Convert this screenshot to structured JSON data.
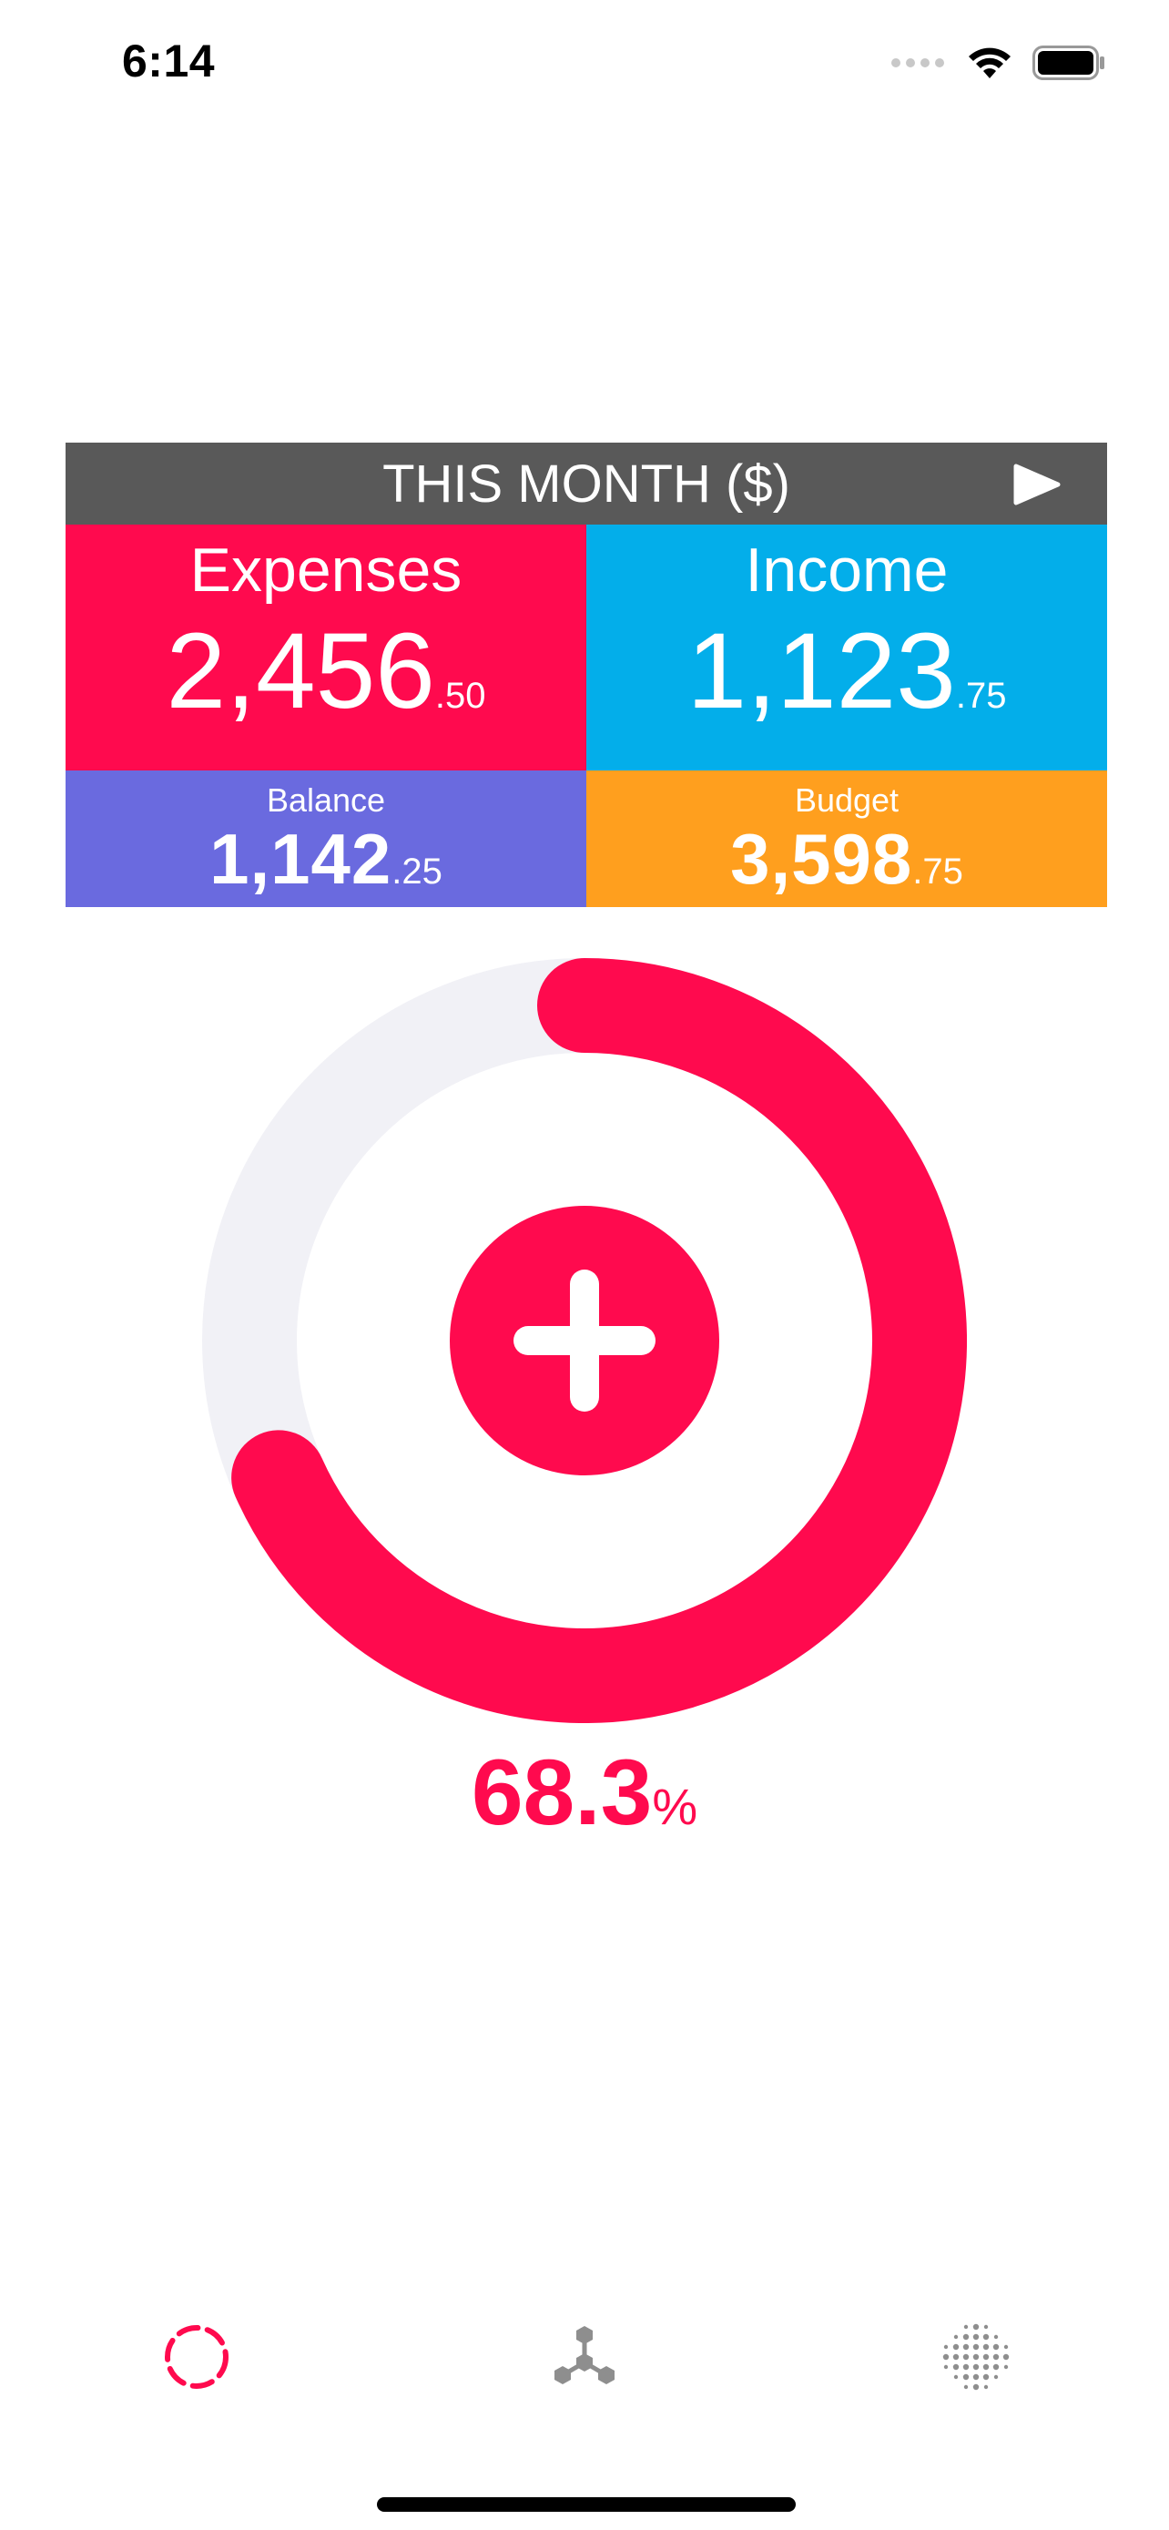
{
  "status_bar": {
    "time": "6:14"
  },
  "header": {
    "title": "THIS MONTH ($)",
    "next_icon": "play-icon"
  },
  "summary": {
    "expenses": {
      "label": "Expenses",
      "whole": "2,456",
      "cents": ".50",
      "color": "#ff0a4e"
    },
    "income": {
      "label": "Income",
      "whole": "1,123",
      "cents": ".75",
      "color": "#03aeea"
    },
    "balance": {
      "label": "Balance",
      "whole": "1,142",
      "cents": ".25",
      "color": "#6a6adf"
    },
    "budget": {
      "label": "Budget",
      "whole": "3,598",
      "cents": ".75",
      "color": "#ff9f1e"
    }
  },
  "progress": {
    "fraction": 0.683,
    "value": "68.3",
    "unit": "%",
    "color": "#ff0a4e",
    "track_color": "#f1f1f6"
  },
  "add_button": {
    "icon": "plus-icon"
  },
  "tab_bar": {
    "tabs": [
      {
        "icon": "dashed-circle-icon",
        "active": true,
        "color": "#ff0a4e"
      },
      {
        "icon": "hexagon-network-icon",
        "active": false,
        "color": "#8e8e8e"
      },
      {
        "icon": "dot-grid-icon",
        "active": false,
        "color": "#8e8e8e"
      }
    ]
  }
}
